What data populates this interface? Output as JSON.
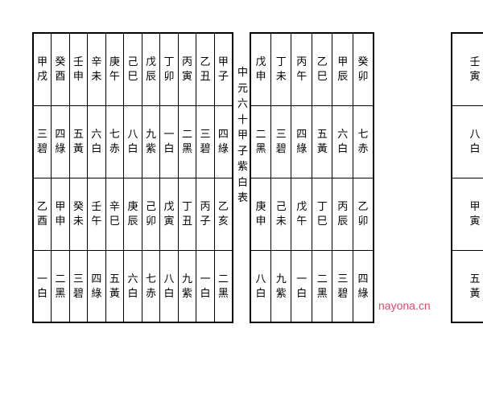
{
  "title": "中元六十甲子紫白表",
  "watermark": "nayona.cn",
  "left": {
    "cols": 10,
    "rows": [
      {
        "type": "tall",
        "cells": [
          [
            "甲",
            "戌"
          ],
          [
            "癸",
            "酉"
          ],
          [
            "壬",
            "申"
          ],
          [
            "辛",
            "未"
          ],
          [
            "庚",
            "午"
          ],
          [
            "己",
            "巳"
          ],
          [
            "戊",
            "辰"
          ],
          [
            "丁",
            "卯"
          ],
          [
            "丙",
            "寅"
          ],
          [
            "乙",
            "丑"
          ]
        ]
      },
      {
        "type": "tall",
        "cells": [
          [
            "三",
            "碧"
          ],
          [
            "四",
            "綠"
          ],
          [
            "五",
            "黃"
          ],
          [
            "六",
            "白"
          ],
          [
            "七",
            "赤"
          ],
          [
            "八",
            "白"
          ],
          [
            "九",
            "紫"
          ],
          [
            "一",
            "白"
          ],
          [
            "二",
            "黑"
          ],
          [
            "三",
            "碧"
          ]
        ]
      },
      {
        "type": "tall",
        "cells": [
          [
            "乙",
            "酉"
          ],
          [
            "甲",
            "申"
          ],
          [
            "癸",
            "未"
          ],
          [
            "壬",
            "午"
          ],
          [
            "辛",
            "巳"
          ],
          [
            "庚",
            "辰"
          ],
          [
            "己",
            "卯"
          ],
          [
            "戊",
            "寅"
          ],
          [
            "丁",
            "丑"
          ],
          [
            "丙",
            "子"
          ]
        ]
      },
      {
        "type": "tall",
        "cells": [
          [
            "一",
            "白"
          ],
          [
            "二",
            "黑"
          ],
          [
            "三",
            "碧"
          ],
          [
            "四",
            "綠"
          ],
          [
            "五",
            "黃"
          ],
          [
            "六",
            "白"
          ],
          [
            "七",
            "赤"
          ],
          [
            "八",
            "白"
          ],
          [
            "九",
            "紫"
          ],
          [
            "一",
            "白"
          ]
        ]
      }
    ],
    "first_extra": [
      [
        "甲",
        "子"
      ]
    ],
    "first_extra2": [
      [
        "四",
        "綠"
      ]
    ],
    "third_extra": [
      [
        "乙",
        "亥"
      ]
    ],
    "fourth_extra": [
      [
        "二",
        "黑"
      ]
    ]
  },
  "middle": {
    "cols": 6,
    "rows": [
      {
        "type": "tall",
        "cells": [
          [
            "戊",
            "申"
          ],
          [
            "丁",
            "未"
          ],
          [
            "丙",
            "午"
          ],
          [
            "乙",
            "巳"
          ],
          [
            "甲",
            "辰"
          ],
          [
            "癸",
            "卯"
          ]
        ]
      },
      {
        "type": "tall",
        "cells": [
          [
            "二",
            "黑"
          ],
          [
            "三",
            "碧"
          ],
          [
            "四",
            "綠"
          ],
          [
            "五",
            "黃"
          ],
          [
            "六",
            "白"
          ],
          [
            "七",
            "赤"
          ]
        ]
      },
      {
        "type": "tall",
        "cells": [
          [
            "庚",
            "申"
          ],
          [
            "己",
            "未"
          ],
          [
            "戊",
            "午"
          ],
          [
            "丁",
            "巳"
          ],
          [
            "丙",
            "辰"
          ],
          [
            "乙",
            "卯"
          ]
        ]
      },
      {
        "type": "tall",
        "cells": [
          [
            "八",
            "白"
          ],
          [
            "九",
            "紫"
          ],
          [
            "一",
            "白"
          ],
          [
            "二",
            "黑"
          ],
          [
            "三",
            "碧"
          ],
          [
            "四",
            "綠"
          ]
        ]
      }
    ]
  },
  "right": {
    "cols": 1,
    "rows": [
      {
        "type": "tall",
        "cells": [
          [
            "壬",
            "寅"
          ]
        ]
      },
      {
        "type": "tall",
        "cells": [
          [
            "八",
            "白"
          ]
        ]
      },
      {
        "type": "tall",
        "cells": [
          [
            "甲",
            "寅"
          ]
        ]
      },
      {
        "type": "tall",
        "cells": [
          [
            "五",
            "黃"
          ]
        ]
      }
    ]
  }
}
